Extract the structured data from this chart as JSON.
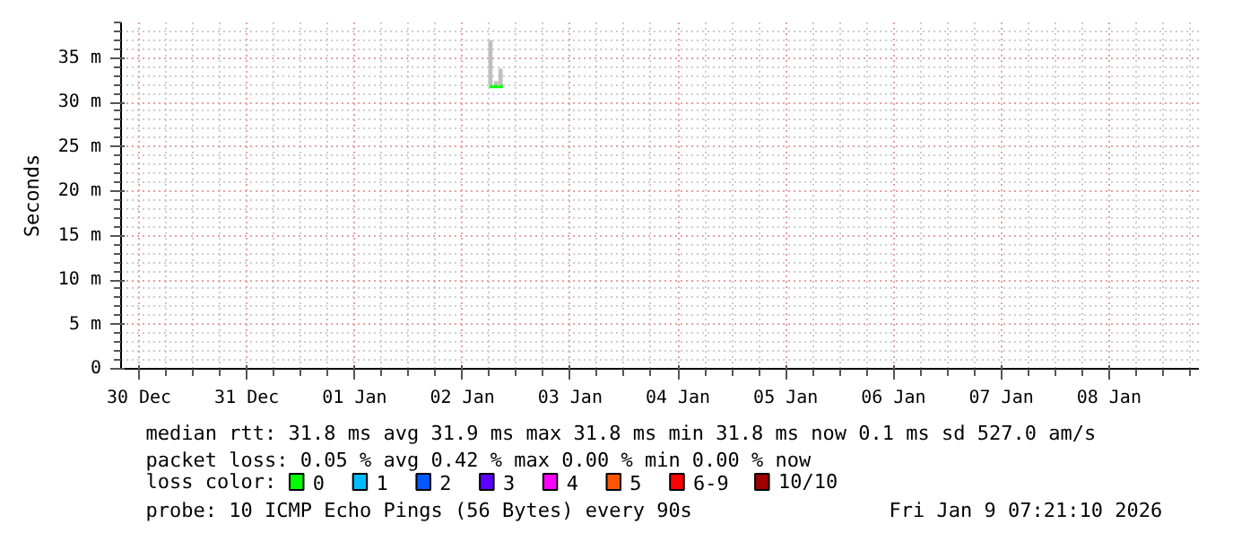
{
  "chart_data": {
    "type": "line",
    "ylabel": "Seconds",
    "legend_title": "loss color:",
    "legend": "bottom",
    "grid": true,
    "xlim": [
      "2025-12-29T20:00",
      "2026-01-08T20:00"
    ],
    "xticks": [
      {
        "value": "2025-12-30",
        "label": "30 Dec"
      },
      {
        "value": "2025-12-31",
        "label": "31 Dec"
      },
      {
        "value": "2026-01-01",
        "label": "01 Jan"
      },
      {
        "value": "2026-01-02",
        "label": "02 Jan"
      },
      {
        "value": "2026-01-03",
        "label": "03 Jan"
      },
      {
        "value": "2026-01-04",
        "label": "04 Jan"
      },
      {
        "value": "2026-01-05",
        "label": "05 Jan"
      },
      {
        "value": "2026-01-06",
        "label": "06 Jan"
      },
      {
        "value": "2026-01-07",
        "label": "07 Jan"
      },
      {
        "value": "2026-01-08",
        "label": "08 Jan"
      }
    ],
    "ylim": [
      0,
      39
    ],
    "yticks": [
      0,
      {
        "value": 5,
        "label": "5 m"
      },
      {
        "value": 10,
        "label": "10 m"
      },
      {
        "value": 15,
        "label": "15 m"
      },
      {
        "value": 20,
        "label": "20 m"
      },
      {
        "value": 25,
        "label": "25 m"
      },
      {
        "value": 30,
        "label": "30 m"
      },
      {
        "value": 35,
        "label": "35 m"
      }
    ],
    "series": [
      {
        "type": "bar",
        "color": "#c0c0c0",
        "x": [
          "2026-01-02T06:15",
          "2026-01-02T07:30",
          "2026-01-02T08:30"
        ],
        "base": [
          32.0,
          32.0,
          32.0
        ],
        "values": [
          5.0,
          0.4,
          1.8
        ]
      },
      {
        "name": "0",
        "color": "#00ff00",
        "x": [
          "2026-01-02T06:00",
          "2026-01-02T09:00"
        ],
        "values": [
          31.8,
          31.8
        ]
      },
      {
        "name": "1",
        "color": "#00bbff"
      },
      {
        "name": "2",
        "color": "#0059ff"
      },
      {
        "name": "3",
        "color": "#5e00ff"
      },
      {
        "name": "4",
        "color": "#ff00ff"
      },
      {
        "name": "5",
        "color": "#ff5500"
      },
      {
        "name": "6-9",
        "color": "#ff0000"
      },
      {
        "name": "10/10",
        "color": "#a10000"
      }
    ],
    "annotations": [
      "median rtt:  31.8 ms avg  31.9 ms max  31.8 ms min  31.8 ms now  0.1 ms sd  527.0   am/s",
      "packet loss: 0.05 % avg  0.42 % max  0.00 % min  0.00 % now",
      "probe:       10 ICMP Echo Pings (56 Bytes) every 90s",
      "Fri Jan  9 07:21:10 2026"
    ]
  }
}
